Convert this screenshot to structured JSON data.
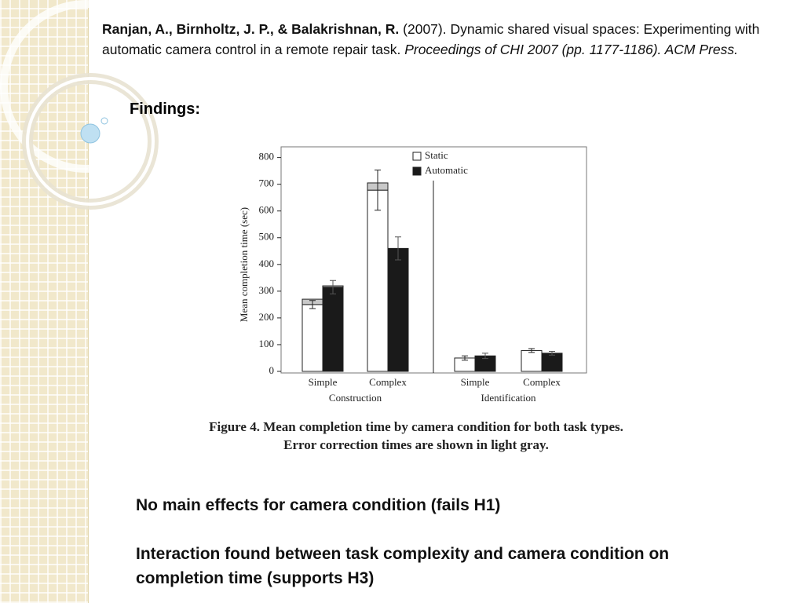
{
  "citation": {
    "authors": "Ranjan, A., Birnholtz, J. P., & Balakrishnan, R.",
    "body": "(2007). Dynamic shared visual spaces: Experimenting with automatic camera control in a remote repair task.",
    "venue": "Proceedings of CHI 2007 (pp. 1177-1186). ACM Press."
  },
  "heading": "Findings:",
  "chart_data": {
    "type": "bar",
    "ylabel": "Mean completion time (sec)",
    "categories": [
      "Simple",
      "Complex",
      "Simple",
      "Complex"
    ],
    "groups": [
      "Construction",
      "Identification"
    ],
    "series": [
      {
        "name": "Static",
        "color": "#ffffff",
        "values": [
          250,
          678,
          50,
          78
        ],
        "error_correction": [
          20,
          27,
          0,
          0
        ],
        "errors": [
          15,
          75,
          8,
          7
        ]
      },
      {
        "name": "Automatic",
        "color": "#1a1a1a",
        "values": [
          315,
          460,
          58,
          68
        ],
        "error_correction": [
          5,
          0,
          0,
          0
        ],
        "errors": [
          25,
          43,
          10,
          7
        ]
      }
    ],
    "error_correction_color": "#c8c8c8",
    "ylim": [
      0,
      840
    ],
    "yticks": [
      0,
      100,
      200,
      300,
      400,
      500,
      600,
      700,
      800
    ]
  },
  "figure_caption": "Figure 4. Mean completion time by camera condition for both task types. Error correction times are shown in light gray.",
  "bullets": [
    "No main effects for camera condition (fails H1)",
    "Interaction found between task complexity and camera condition on completion time (supports H3)"
  ]
}
